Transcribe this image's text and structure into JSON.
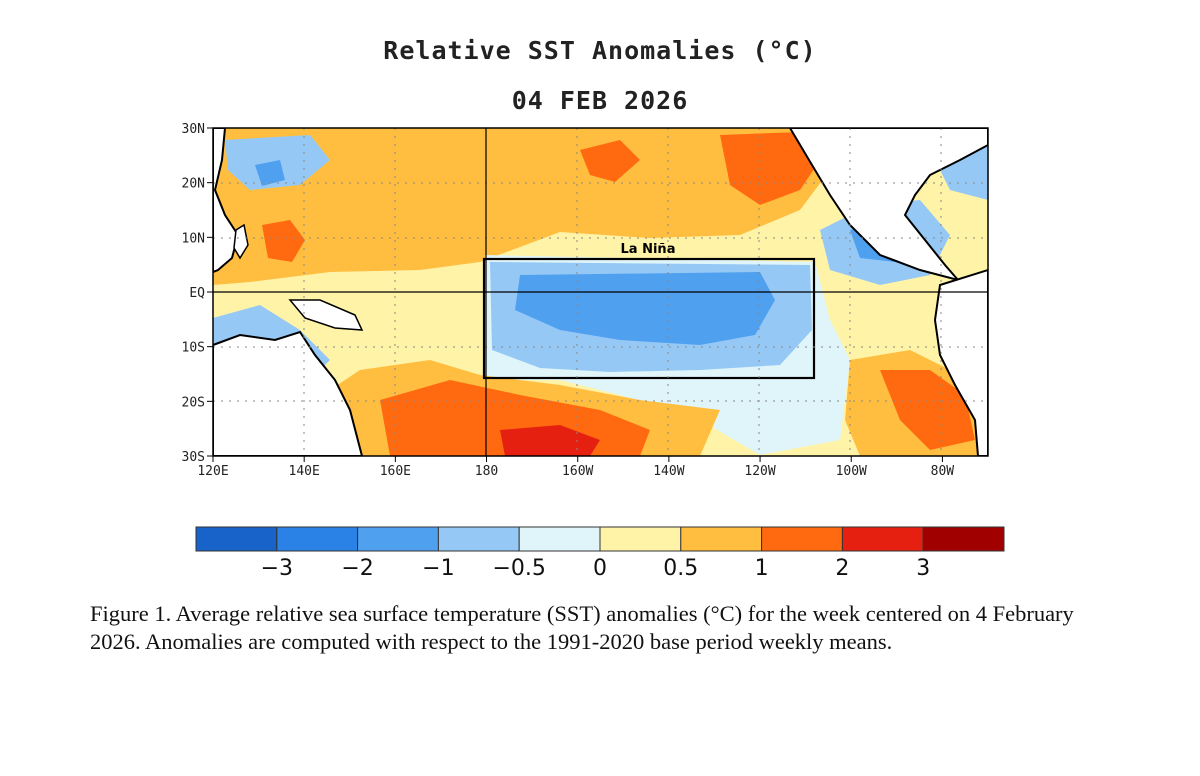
{
  "title": "Relative SST Anomalies (°C)",
  "date": "04 FEB 2026",
  "annotation": "La Niña",
  "caption": "Figure 1. Average relative sea surface temperature (SST) anomalies (°C) for the week centered on 4 February 2026.  Anomalies are computed with respect to the 1991-2020 base period weekly means.",
  "map": {
    "lon_range_east": [
      120,
      290
    ],
    "lat_range": [
      -30,
      30
    ],
    "lat_labels": [
      {
        "lat": 30,
        "label": "30N"
      },
      {
        "lat": 20,
        "label": "20N"
      },
      {
        "lat": 10,
        "label": "10N"
      },
      {
        "lat": 0,
        "label": "EQ"
      },
      {
        "lat": -10,
        "label": "10S"
      },
      {
        "lat": -20,
        "label": "20S"
      },
      {
        "lat": -30,
        "label": "30S"
      }
    ],
    "lon_labels": [
      {
        "lon": 120,
        "label": "120E"
      },
      {
        "lon": 140,
        "label": "140E"
      },
      {
        "lon": 160,
        "label": "160E"
      },
      {
        "lon": 180,
        "label": "180"
      },
      {
        "lon": 200,
        "label": "160W"
      },
      {
        "lon": 220,
        "label": "140W"
      },
      {
        "lon": 240,
        "label": "120W"
      },
      {
        "lon": 260,
        "label": "100W"
      },
      {
        "lon": 280,
        "label": "80W"
      }
    ],
    "box_region": {
      "lon": [
        180,
        252
      ],
      "lat": [
        6,
        -16
      ]
    }
  },
  "colorbar": {
    "colors": [
      "#1763c9",
      "#2a82e6",
      "#50a0f0",
      "#96c8f5",
      "#dff5fa",
      "#fff3a8",
      "#ffbe40",
      "#ff6a10",
      "#e62010",
      "#a00000"
    ],
    "labels": [
      "−3",
      "−2",
      "−1",
      "−0.5",
      "0",
      "0.5",
      "1",
      "2",
      "3"
    ]
  }
}
